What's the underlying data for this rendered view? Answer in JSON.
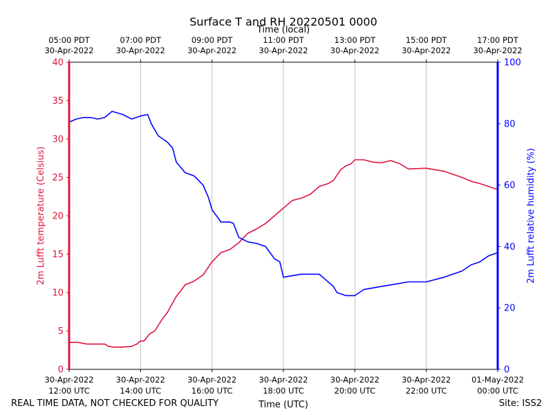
{
  "chart_data": {
    "type": "line",
    "title": "Surface T and RH 20220501 0000",
    "top_xlabel": "Time (local)",
    "xlabel": "Time (UTC)",
    "ylabel_left": "2m Lufft temperature (Celsius)",
    "ylabel_right": "2m Lufft relative humidity (%)",
    "ylim_left": [
      0,
      40
    ],
    "ylim_right": [
      0,
      100
    ],
    "xlim_hours_utc": [
      12,
      24
    ],
    "left_ticks": [
      0,
      5,
      10,
      15,
      20,
      25,
      30,
      35,
      40
    ],
    "right_ticks": [
      0,
      20,
      40,
      60,
      80,
      100
    ],
    "x_tick_hours": [
      12,
      14,
      16,
      18,
      20,
      22,
      24
    ],
    "bottom_tick_labels": [
      [
        "30-Apr-2022",
        "12:00 UTC"
      ],
      [
        "30-Apr-2022",
        "14:00 UTC"
      ],
      [
        "30-Apr-2022",
        "16:00 UTC"
      ],
      [
        "30-Apr-2022",
        "18:00 UTC"
      ],
      [
        "30-Apr-2022",
        "20:00 UTC"
      ],
      [
        "30-Apr-2022",
        "22:00 UTC"
      ],
      [
        "01-May-2022",
        "00:00 UTC"
      ]
    ],
    "top_tick_labels": [
      [
        "05:00 PDT",
        "30-Apr-2022"
      ],
      [
        "07:00 PDT",
        "30-Apr-2022"
      ],
      [
        "09:00 PDT",
        "30-Apr-2022"
      ],
      [
        "11:00 PDT",
        "30-Apr-2022"
      ],
      [
        "13:00 PDT",
        "30-Apr-2022"
      ],
      [
        "15:00 PDT",
        "30-Apr-2022"
      ],
      [
        "17:00 PDT",
        "30-Apr-2022"
      ]
    ],
    "vertical_grid": true,
    "series": [
      {
        "name": "2m Lufft temperature",
        "axis": "left",
        "color": "#dc143c",
        "x": [
          12.0,
          12.25,
          12.5,
          12.75,
          13.0,
          13.1,
          13.25,
          13.5,
          13.75,
          13.9,
          14.0,
          14.1,
          14.25,
          14.4,
          14.6,
          14.75,
          15.0,
          15.25,
          15.5,
          15.75,
          16.0,
          16.25,
          16.5,
          16.75,
          17.0,
          17.25,
          17.5,
          17.75,
          18.0,
          18.25,
          18.5,
          18.75,
          19.0,
          19.25,
          19.4,
          19.6,
          19.75,
          19.9,
          20.0,
          20.25,
          20.5,
          20.75,
          21.0,
          21.25,
          21.5,
          22.0,
          22.25,
          22.5,
          22.75,
          23.0,
          23.25,
          23.5,
          23.75,
          24.0
        ],
        "values": [
          3.5,
          3.5,
          3.3,
          3.3,
          3.3,
          3.0,
          2.9,
          2.9,
          3.0,
          3.3,
          3.7,
          3.7,
          4.6,
          5.0,
          6.5,
          7.4,
          9.5,
          11.0,
          11.5,
          12.3,
          14.0,
          15.2,
          15.6,
          16.5,
          17.7,
          18.3,
          19.0,
          20.0,
          21.0,
          22.0,
          22.3,
          22.8,
          23.8,
          24.2,
          24.6,
          26.0,
          26.5,
          26.8,
          27.3,
          27.3,
          27.0,
          26.9,
          27.2,
          26.8,
          26.1,
          26.2,
          26.0,
          25.8,
          25.4,
          25.0,
          24.5,
          24.2,
          23.8,
          23.4
        ]
      },
      {
        "name": "2m Lufft relative humidity",
        "axis": "right",
        "color": "#0000ff",
        "x": [
          12.0,
          12.2,
          12.4,
          12.6,
          12.8,
          13.0,
          13.2,
          13.5,
          13.75,
          14.0,
          14.2,
          14.3,
          14.5,
          14.75,
          14.9,
          15.0,
          15.25,
          15.5,
          15.75,
          15.9,
          16.0,
          16.25,
          16.5,
          16.6,
          16.75,
          17.0,
          17.25,
          17.5,
          17.75,
          17.9,
          18.0,
          18.25,
          18.5,
          18.75,
          19.0,
          19.2,
          19.4,
          19.5,
          19.75,
          20.0,
          20.25,
          20.5,
          20.75,
          21.0,
          21.5,
          22.0,
          22.5,
          23.0,
          23.25,
          23.5,
          23.75,
          24.0
        ],
        "values": [
          80.5,
          81.5,
          82.0,
          82.0,
          81.5,
          82.0,
          84.0,
          83.0,
          81.5,
          82.5,
          83.0,
          80.0,
          76.0,
          74.0,
          72.0,
          67.5,
          64.0,
          63.0,
          60.0,
          56.0,
          52.0,
          48.0,
          48.0,
          47.5,
          43.0,
          41.5,
          41.0,
          40.0,
          36.0,
          35.0,
          30.0,
          30.5,
          31.0,
          31.0,
          31.0,
          29.0,
          27.0,
          25.0,
          24.0,
          24.0,
          26.0,
          26.5,
          27.0,
          27.5,
          28.5,
          28.5,
          30.0,
          32.0,
          34.0,
          35.0,
          37.0,
          38.0
        ]
      }
    ]
  },
  "footer": {
    "disclaimer": "REAL TIME DATA, NOT CHECKED FOR QUALITY",
    "site": "Site: ISS2"
  }
}
